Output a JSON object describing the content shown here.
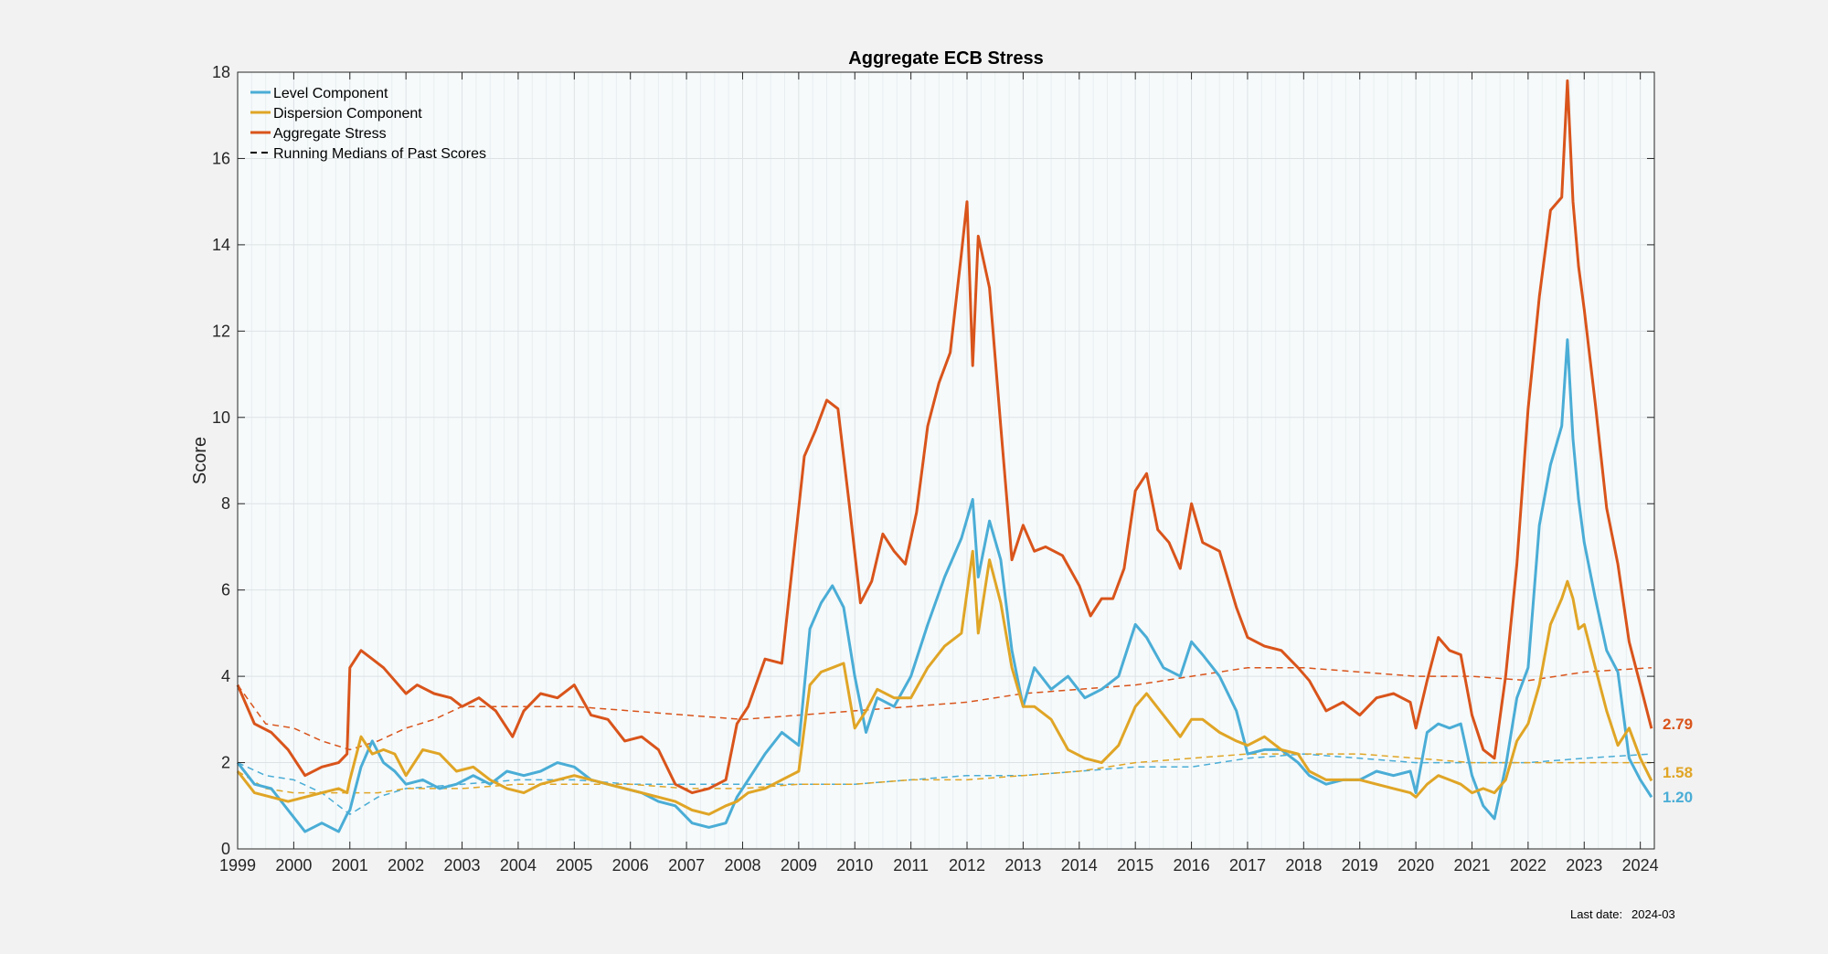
{
  "chart_data": {
    "type": "line",
    "title": "Aggregate ECB Stress",
    "xlabel": "",
    "ylabel": "Score",
    "xlim": [
      1999.0,
      2024.25
    ],
    "ylim": [
      0,
      18
    ],
    "x_ticks": [
      "1999",
      "2000",
      "2001",
      "2002",
      "2003",
      "2004",
      "2005",
      "2006",
      "2007",
      "2008",
      "2009",
      "2010",
      "2011",
      "2012",
      "2013",
      "2014",
      "2015",
      "2016",
      "2017",
      "2018",
      "2019",
      "2020",
      "2021",
      "2022",
      "2023",
      "2024"
    ],
    "y_ticks": [
      0,
      2,
      4,
      6,
      8,
      10,
      12,
      14,
      16,
      18
    ],
    "grid": true,
    "legend_position": "top-left",
    "legend": [
      {
        "label": "Level Component",
        "color": "#4aadd6",
        "style": "solid"
      },
      {
        "label": "Dispersion Component",
        "color": "#e0a526",
        "style": "solid"
      },
      {
        "label": "Aggregate Stress",
        "color": "#d9541b",
        "style": "solid"
      },
      {
        "label": "Running Medians of Past Scores",
        "color": "#000000",
        "style": "dashed"
      }
    ],
    "series": [
      {
        "name": "Aggregate Stress",
        "color": "#d9541b",
        "style": "solid",
        "x": [
          1999.0,
          1999.3,
          1999.6,
          1999.9,
          2000.2,
          2000.5,
          2000.8,
          2000.95,
          2001.0,
          2001.2,
          2001.4,
          2001.6,
          2001.8,
          2002.0,
          2002.2,
          2002.5,
          2002.8,
          2003.0,
          2003.3,
          2003.6,
          2003.9,
          2004.1,
          2004.4,
          2004.7,
          2005.0,
          2005.3,
          2005.6,
          2005.9,
          2006.2,
          2006.5,
          2006.8,
          2007.1,
          2007.4,
          2007.7,
          2007.9,
          2008.1,
          2008.4,
          2008.7,
          2009.0,
          2009.1,
          2009.3,
          2009.5,
          2009.7,
          2009.9,
          2010.1,
          2010.3,
          2010.5,
          2010.7,
          2010.9,
          2011.1,
          2011.3,
          2011.5,
          2011.7,
          2011.9,
          2012.0,
          2012.1,
          2012.2,
          2012.4,
          2012.6,
          2012.8,
          2013.0,
          2013.2,
          2013.4,
          2013.7,
          2014.0,
          2014.2,
          2014.4,
          2014.6,
          2014.8,
          2015.0,
          2015.2,
          2015.4,
          2015.6,
          2015.8,
          2016.0,
          2016.2,
          2016.5,
          2016.8,
          2017.0,
          2017.3,
          2017.6,
          2017.9,
          2018.1,
          2018.4,
          2018.7,
          2019.0,
          2019.3,
          2019.6,
          2019.9,
          2020.0,
          2020.2,
          2020.4,
          2020.6,
          2020.8,
          2021.0,
          2021.2,
          2021.4,
          2021.6,
          2021.8,
          2022.0,
          2022.2,
          2022.4,
          2022.6,
          2022.7,
          2022.8,
          2022.9,
          2023.0,
          2023.2,
          2023.4,
          2023.6,
          2023.8,
          2024.0,
          2024.2
        ],
        "values": [
          3.8,
          2.9,
          2.7,
          2.3,
          1.7,
          1.9,
          2.0,
          2.2,
          4.2,
          4.6,
          4.4,
          4.2,
          3.9,
          3.6,
          3.8,
          3.6,
          3.5,
          3.3,
          3.5,
          3.2,
          2.6,
          3.2,
          3.6,
          3.5,
          3.8,
          3.1,
          3.0,
          2.5,
          2.6,
          2.3,
          1.5,
          1.3,
          1.4,
          1.6,
          2.9,
          3.3,
          4.4,
          4.3,
          7.9,
          9.1,
          9.7,
          10.4,
          10.2,
          8.0,
          5.7,
          6.2,
          7.3,
          6.9,
          6.6,
          7.8,
          9.8,
          10.8,
          11.5,
          13.8,
          15.0,
          11.2,
          14.2,
          13.0,
          9.8,
          6.7,
          7.5,
          6.9,
          7.0,
          6.8,
          6.1,
          5.4,
          5.8,
          5.8,
          6.5,
          8.3,
          8.7,
          7.4,
          7.1,
          6.5,
          8.0,
          7.1,
          6.9,
          5.6,
          4.9,
          4.7,
          4.6,
          4.2,
          3.9,
          3.2,
          3.4,
          3.1,
          3.5,
          3.6,
          3.4,
          2.8,
          3.9,
          4.9,
          4.6,
          4.5,
          3.1,
          2.3,
          2.1,
          4.0,
          6.6,
          10.2,
          12.8,
          14.8,
          15.1,
          17.8,
          15.0,
          13.5,
          12.5,
          10.3,
          7.9,
          6.6,
          4.8,
          3.8,
          2.79
        ]
      },
      {
        "name": "Level Component",
        "color": "#4aadd6",
        "style": "solid",
        "x": [
          1999.0,
          1999.3,
          1999.6,
          1999.9,
          2000.2,
          2000.5,
          2000.8,
          2000.95,
          2001.0,
          2001.2,
          2001.4,
          2001.6,
          2001.8,
          2002.0,
          2002.3,
          2002.6,
          2002.9,
          2003.2,
          2003.5,
          2003.8,
          2004.1,
          2004.4,
          2004.7,
          2005.0,
          2005.3,
          2005.6,
          2005.9,
          2006.2,
          2006.5,
          2006.8,
          2007.1,
          2007.4,
          2007.7,
          2007.9,
          2008.1,
          2008.4,
          2008.7,
          2009.0,
          2009.2,
          2009.4,
          2009.6,
          2009.8,
          2010.0,
          2010.2,
          2010.4,
          2010.7,
          2011.0,
          2011.3,
          2011.6,
          2011.9,
          2012.1,
          2012.2,
          2012.4,
          2012.6,
          2012.8,
          2013.0,
          2013.2,
          2013.5,
          2013.8,
          2014.1,
          2014.4,
          2014.7,
          2015.0,
          2015.2,
          2015.5,
          2015.8,
          2016.0,
          2016.2,
          2016.5,
          2016.8,
          2017.0,
          2017.3,
          2017.6,
          2017.9,
          2018.1,
          2018.4,
          2018.7,
          2019.0,
          2019.3,
          2019.6,
          2019.9,
          2020.0,
          2020.2,
          2020.4,
          2020.6,
          2020.8,
          2021.0,
          2021.2,
          2021.4,
          2021.6,
          2021.8,
          2022.0,
          2022.2,
          2022.4,
          2022.6,
          2022.7,
          2022.8,
          2022.9,
          2023.0,
          2023.2,
          2023.4,
          2023.6,
          2023.8,
          2024.0,
          2024.2
        ],
        "values": [
          2.0,
          1.5,
          1.4,
          0.9,
          0.4,
          0.6,
          0.4,
          0.8,
          0.9,
          1.9,
          2.5,
          2.0,
          1.8,
          1.5,
          1.6,
          1.4,
          1.5,
          1.7,
          1.5,
          1.8,
          1.7,
          1.8,
          2.0,
          1.9,
          1.6,
          1.5,
          1.4,
          1.3,
          1.1,
          1.0,
          0.6,
          0.5,
          0.6,
          1.2,
          1.6,
          2.2,
          2.7,
          2.4,
          5.1,
          5.7,
          6.1,
          5.6,
          4.0,
          2.7,
          3.5,
          3.3,
          4.0,
          5.2,
          6.3,
          7.2,
          8.1,
          6.3,
          7.6,
          6.7,
          4.6,
          3.3,
          4.2,
          3.7,
          4.0,
          3.5,
          3.7,
          4.0,
          5.2,
          4.9,
          4.2,
          4.0,
          4.8,
          4.5,
          4.0,
          3.2,
          2.2,
          2.3,
          2.3,
          2.0,
          1.7,
          1.5,
          1.6,
          1.6,
          1.8,
          1.7,
          1.8,
          1.3,
          2.7,
          2.9,
          2.8,
          2.9,
          1.7,
          1.0,
          0.7,
          1.9,
          3.5,
          4.2,
          7.5,
          8.9,
          9.8,
          11.8,
          9.5,
          8.1,
          7.1,
          5.8,
          4.6,
          4.1,
          2.1,
          1.6,
          1.2
        ]
      },
      {
        "name": "Dispersion Component",
        "color": "#e0a526",
        "style": "solid",
        "x": [
          1999.0,
          1999.3,
          1999.6,
          1999.9,
          2000.2,
          2000.5,
          2000.8,
          2000.95,
          2001.0,
          2001.2,
          2001.4,
          2001.6,
          2001.8,
          2002.0,
          2002.3,
          2002.6,
          2002.9,
          2003.2,
          2003.5,
          2003.8,
          2004.1,
          2004.4,
          2004.7,
          2005.0,
          2005.3,
          2005.6,
          2005.9,
          2006.2,
          2006.5,
          2006.8,
          2007.1,
          2007.4,
          2007.7,
          2007.9,
          2008.1,
          2008.4,
          2008.7,
          2009.0,
          2009.2,
          2009.4,
          2009.6,
          2009.8,
          2010.0,
          2010.2,
          2010.4,
          2010.7,
          2011.0,
          2011.3,
          2011.6,
          2011.9,
          2012.1,
          2012.2,
          2012.4,
          2012.6,
          2012.8,
          2013.0,
          2013.2,
          2013.5,
          2013.8,
          2014.1,
          2014.4,
          2014.7,
          2015.0,
          2015.2,
          2015.5,
          2015.8,
          2016.0,
          2016.2,
          2016.5,
          2016.8,
          2017.0,
          2017.3,
          2017.6,
          2017.9,
          2018.1,
          2018.4,
          2018.7,
          2019.0,
          2019.3,
          2019.6,
          2019.9,
          2020.0,
          2020.2,
          2020.4,
          2020.6,
          2020.8,
          2021.0,
          2021.2,
          2021.4,
          2021.6,
          2021.8,
          2022.0,
          2022.2,
          2022.4,
          2022.6,
          2022.7,
          2022.8,
          2022.9,
          2023.0,
          2023.2,
          2023.4,
          2023.6,
          2023.8,
          2024.0,
          2024.2
        ],
        "values": [
          1.8,
          1.3,
          1.2,
          1.1,
          1.2,
          1.3,
          1.4,
          1.3,
          1.6,
          2.6,
          2.2,
          2.3,
          2.2,
          1.7,
          2.3,
          2.2,
          1.8,
          1.9,
          1.6,
          1.4,
          1.3,
          1.5,
          1.6,
          1.7,
          1.6,
          1.5,
          1.4,
          1.3,
          1.2,
          1.1,
          0.9,
          0.8,
          1.0,
          1.1,
          1.3,
          1.4,
          1.6,
          1.8,
          3.8,
          4.1,
          4.2,
          4.3,
          2.8,
          3.2,
          3.7,
          3.5,
          3.5,
          4.2,
          4.7,
          5.0,
          6.9,
          5.0,
          6.7,
          5.7,
          4.2,
          3.3,
          3.3,
          3.0,
          2.3,
          2.1,
          2.0,
          2.4,
          3.3,
          3.6,
          3.1,
          2.6,
          3.0,
          3.0,
          2.7,
          2.5,
          2.4,
          2.6,
          2.3,
          2.2,
          1.8,
          1.6,
          1.6,
          1.6,
          1.5,
          1.4,
          1.3,
          1.2,
          1.5,
          1.7,
          1.6,
          1.5,
          1.3,
          1.4,
          1.3,
          1.6,
          2.5,
          2.9,
          3.8,
          5.2,
          5.8,
          6.2,
          5.8,
          5.1,
          5.2,
          4.2,
          3.2,
          2.4,
          2.8,
          2.1,
          1.58
        ]
      },
      {
        "name": "Running Medians of Past Scores",
        "color": "#d9541b",
        "style": "dashed",
        "x": [
          1999.0,
          1999.5,
          2000.0,
          2000.5,
          2001.0,
          2001.5,
          2002.0,
          2002.5,
          2003.0,
          2004.0,
          2005.0,
          2006.0,
          2007.0,
          2008.0,
          2009.0,
          2010.0,
          2011.0,
          2012.0,
          2013.0,
          2014.0,
          2015.0,
          2016.0,
          2017.0,
          2018.0,
          2019.0,
          2020.0,
          2021.0,
          2022.0,
          2023.0,
          2024.2
        ],
        "values": [
          3.8,
          2.9,
          2.8,
          2.5,
          2.3,
          2.5,
          2.8,
          3.0,
          3.3,
          3.3,
          3.3,
          3.2,
          3.1,
          3.0,
          3.1,
          3.2,
          3.3,
          3.4,
          3.6,
          3.7,
          3.8,
          4.0,
          4.2,
          4.2,
          4.1,
          4.0,
          4.0,
          3.9,
          4.1,
          4.2
        ]
      },
      {
        "name": "Running Medians of Past Scores",
        "color": "#4aadd6",
        "style": "dashed",
        "x": [
          1999.0,
          1999.5,
          2000.0,
          2000.5,
          2001.0,
          2001.5,
          2002.0,
          2003.0,
          2004.0,
          2005.0,
          2006.0,
          2007.0,
          2008.0,
          2009.0,
          2010.0,
          2011.0,
          2012.0,
          2013.0,
          2014.0,
          2015.0,
          2016.0,
          2017.0,
          2018.0,
          2019.0,
          2020.0,
          2021.0,
          2022.0,
          2023.0,
          2024.2
        ],
        "values": [
          2.0,
          1.7,
          1.6,
          1.3,
          0.8,
          1.2,
          1.4,
          1.5,
          1.6,
          1.6,
          1.5,
          1.5,
          1.5,
          1.5,
          1.5,
          1.6,
          1.7,
          1.7,
          1.8,
          1.9,
          1.9,
          2.1,
          2.2,
          2.1,
          2.0,
          2.0,
          2.0,
          2.1,
          2.2
        ]
      },
      {
        "name": "Running Medians of Past Scores",
        "color": "#e0a526",
        "style": "dashed",
        "x": [
          1999.0,
          1999.5,
          2000.0,
          2000.5,
          2001.0,
          2001.5,
          2002.0,
          2003.0,
          2004.0,
          2005.0,
          2006.0,
          2007.0,
          2008.0,
          2009.0,
          2010.0,
          2011.0,
          2012.0,
          2013.0,
          2014.0,
          2015.0,
          2016.0,
          2017.0,
          2018.0,
          2019.0,
          2020.0,
          2021.0,
          2022.0,
          2023.0,
          2024.2
        ],
        "values": [
          1.8,
          1.4,
          1.3,
          1.3,
          1.3,
          1.3,
          1.4,
          1.4,
          1.5,
          1.5,
          1.5,
          1.4,
          1.4,
          1.5,
          1.5,
          1.6,
          1.6,
          1.7,
          1.8,
          2.0,
          2.1,
          2.2,
          2.2,
          2.2,
          2.1,
          2.0,
          2.0,
          2.0,
          2.0
        ]
      }
    ],
    "end_labels": [
      {
        "text": "2.79",
        "value": 2.79,
        "color": "#d9541b"
      },
      {
        "text": "1.58",
        "value": 1.58,
        "color": "#e0a526"
      },
      {
        "text": "1.20",
        "value": 1.2,
        "color": "#4aadd6"
      }
    ],
    "footnote_label": "Last date:",
    "footnote_value": "2024-03"
  }
}
